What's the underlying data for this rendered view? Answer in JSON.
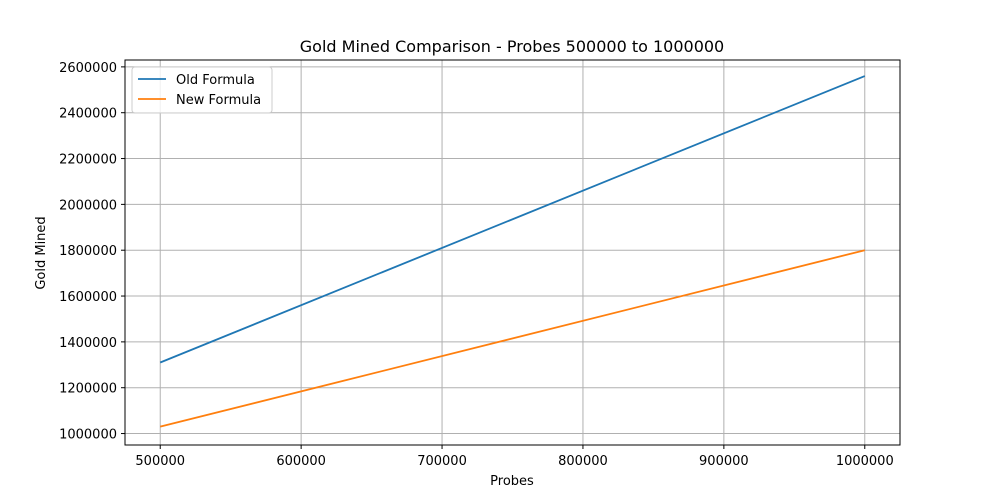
{
  "chart_data": {
    "type": "line",
    "title": "Gold Mined Comparison - Probes 500000 to 1000000",
    "xlabel": "Probes",
    "ylabel": "Gold Mined",
    "x": [
      500000,
      1000000
    ],
    "xlim": [
      475000,
      1025000
    ],
    "ylim": [
      950000,
      2630000
    ],
    "xticks": [
      500000,
      600000,
      700000,
      800000,
      900000,
      1000000
    ],
    "yticks": [
      1000000,
      1200000,
      1400000,
      1600000,
      1800000,
      2000000,
      2200000,
      2400000,
      2600000
    ],
    "grid": true,
    "legend_position": "top-left",
    "series": [
      {
        "name": "Old Formula",
        "color": "#1f77b4",
        "values": [
          1310000,
          2560000
        ]
      },
      {
        "name": "New Formula",
        "color": "#ff7f0e",
        "values": [
          1030000,
          1800000
        ]
      }
    ]
  }
}
